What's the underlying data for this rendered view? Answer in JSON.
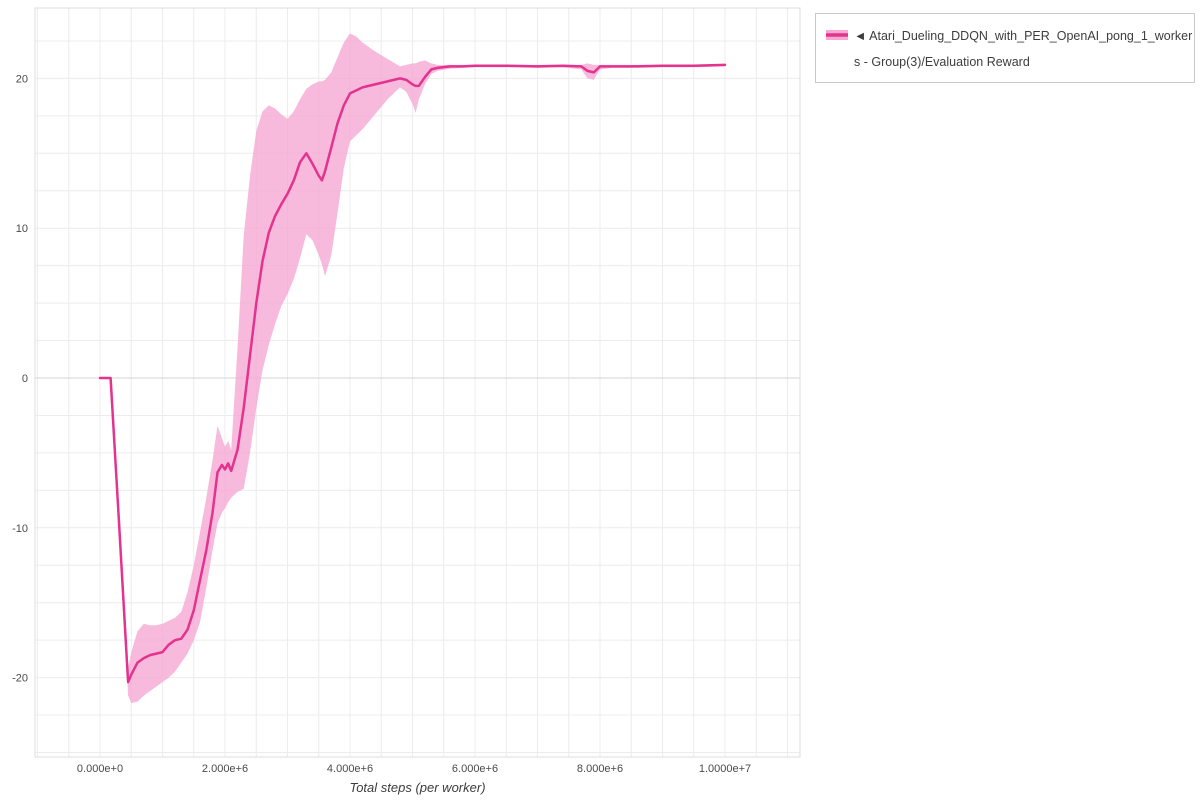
{
  "legend": {
    "entry": {
      "line1": "◄ Atari_Dueling_DDQN_with_PER_OpenAI_pong_1_worker",
      "line2": "s - Group(3)/Evaluation Reward",
      "line_color": "#e4338f",
      "band_color": "#f5a9d3"
    }
  },
  "chart_data": {
    "type": "line",
    "title": "",
    "xlabel": "Total steps (per worker)",
    "ylabel": "",
    "legend_position": "top-right-outside",
    "grid": true,
    "xlim": [
      -1040000,
      11200000
    ],
    "ylim": [
      -25.3,
      24.7
    ],
    "x_grid_step": 500000,
    "y_grid_step": 2.5,
    "x_ticks": [
      {
        "value": 0,
        "label": "0.000e+0"
      },
      {
        "value": 2000000,
        "label": "2.000e+6"
      },
      {
        "value": 4000000,
        "label": "4.000e+6"
      },
      {
        "value": 6000000,
        "label": "6.000e+6"
      },
      {
        "value": 8000000,
        "label": "8.000e+6"
      },
      {
        "value": 10000000,
        "label": "1.0000e+7"
      }
    ],
    "y_ticks": [
      {
        "value": -20,
        "label": "-20"
      },
      {
        "value": -10,
        "label": "-10"
      },
      {
        "value": 0,
        "label": "0"
      },
      {
        "value": 10,
        "label": "10"
      },
      {
        "value": 20,
        "label": "20"
      }
    ],
    "series": [
      {
        "name": "Atari_Dueling_DDQN_with_PER_OpenAI_pong_1_workers - Group(3)/Evaluation Reward",
        "color": "#e4338f",
        "band_color": "#f5a9d3",
        "band_opacity": 0.8,
        "line_width": 2.5,
        "x": [
          0,
          170000,
          300000,
          450000,
          500000,
          600000,
          700000,
          800000,
          900000,
          1000000,
          1100000,
          1200000,
          1300000,
          1400000,
          1500000,
          1600000,
          1700000,
          1800000,
          1880000,
          1950000,
          2000000,
          2050000,
          2100000,
          2200000,
          2300000,
          2400000,
          2500000,
          2600000,
          2700000,
          2800000,
          2900000,
          3000000,
          3100000,
          3200000,
          3300000,
          3400000,
          3500000,
          3550000,
          3600000,
          3700000,
          3800000,
          3900000,
          4000000,
          4100000,
          4200000,
          4400000,
          4600000,
          4800000,
          4900000,
          5000000,
          5050000,
          5100000,
          5200000,
          5300000,
          5400000,
          5600000,
          5800000,
          6000000,
          6500000,
          7000000,
          7400000,
          7700000,
          7800000,
          7900000,
          8000000,
          8200000,
          8500000,
          9000000,
          9500000,
          10000000
        ],
        "mean": [
          0,
          0,
          -9.4,
          -20.3,
          -19.8,
          -19.0,
          -18.7,
          -18.5,
          -18.4,
          -18.3,
          -17.8,
          -17.5,
          -17.4,
          -16.8,
          -15.5,
          -13.5,
          -11.5,
          -9.0,
          -6.3,
          -5.8,
          -6.1,
          -5.7,
          -6.2,
          -4.8,
          -2.0,
          1.5,
          5.0,
          7.8,
          9.7,
          10.8,
          11.6,
          12.3,
          13.2,
          14.4,
          15.0,
          14.3,
          13.5,
          13.2,
          13.8,
          15.4,
          17.0,
          18.2,
          19.0,
          19.2,
          19.4,
          19.6,
          19.8,
          20.0,
          19.9,
          19.6,
          19.5,
          19.5,
          20.1,
          20.6,
          20.7,
          20.8,
          20.8,
          20.85,
          20.85,
          20.8,
          20.85,
          20.8,
          20.5,
          20.4,
          20.8,
          20.8,
          20.8,
          20.85,
          20.85,
          20.9
        ],
        "lower": [
          0,
          0,
          -10.0,
          -21.2,
          -21.7,
          -21.6,
          -21.2,
          -20.9,
          -20.6,
          -20.3,
          -20.0,
          -19.6,
          -19.0,
          -18.4,
          -17.5,
          -16.3,
          -14.0,
          -11.5,
          -9.7,
          -9.0,
          -8.7,
          -8.3,
          -8.0,
          -7.6,
          -7.4,
          -5.0,
          -2.0,
          0.5,
          2.2,
          3.6,
          4.8,
          5.6,
          6.6,
          8.0,
          9.6,
          9.2,
          8.2,
          7.6,
          6.8,
          8.2,
          11.0,
          14.0,
          15.8,
          16.2,
          16.6,
          17.6,
          18.6,
          19.4,
          19.1,
          18.3,
          17.7,
          18.6,
          19.6,
          20.3,
          20.5,
          20.65,
          20.7,
          20.75,
          20.75,
          20.7,
          20.75,
          20.6,
          20.0,
          19.9,
          20.6,
          20.7,
          20.7,
          20.75,
          20.75,
          20.8
        ],
        "upper": [
          0,
          0,
          -8.8,
          -19.4,
          -18.3,
          -16.9,
          -16.4,
          -16.5,
          -16.5,
          -16.4,
          -16.2,
          -16.0,
          -15.6,
          -14.3,
          -12.5,
          -10.3,
          -8.0,
          -5.5,
          -3.2,
          -4.0,
          -4.6,
          -4.2,
          -4.8,
          2.0,
          9.5,
          13.5,
          16.5,
          17.8,
          18.2,
          18.0,
          17.6,
          17.3,
          17.8,
          18.6,
          19.3,
          19.6,
          19.8,
          19.8,
          19.9,
          20.4,
          21.4,
          22.4,
          23.0,
          22.8,
          22.4,
          21.8,
          21.3,
          20.8,
          20.9,
          21.0,
          21.0,
          21.1,
          21.2,
          21.0,
          20.9,
          20.9,
          20.9,
          20.9,
          20.9,
          20.9,
          20.9,
          20.9,
          21.0,
          20.9,
          20.9,
          20.9,
          20.9,
          20.9,
          20.9,
          20.95
        ]
      }
    ]
  }
}
